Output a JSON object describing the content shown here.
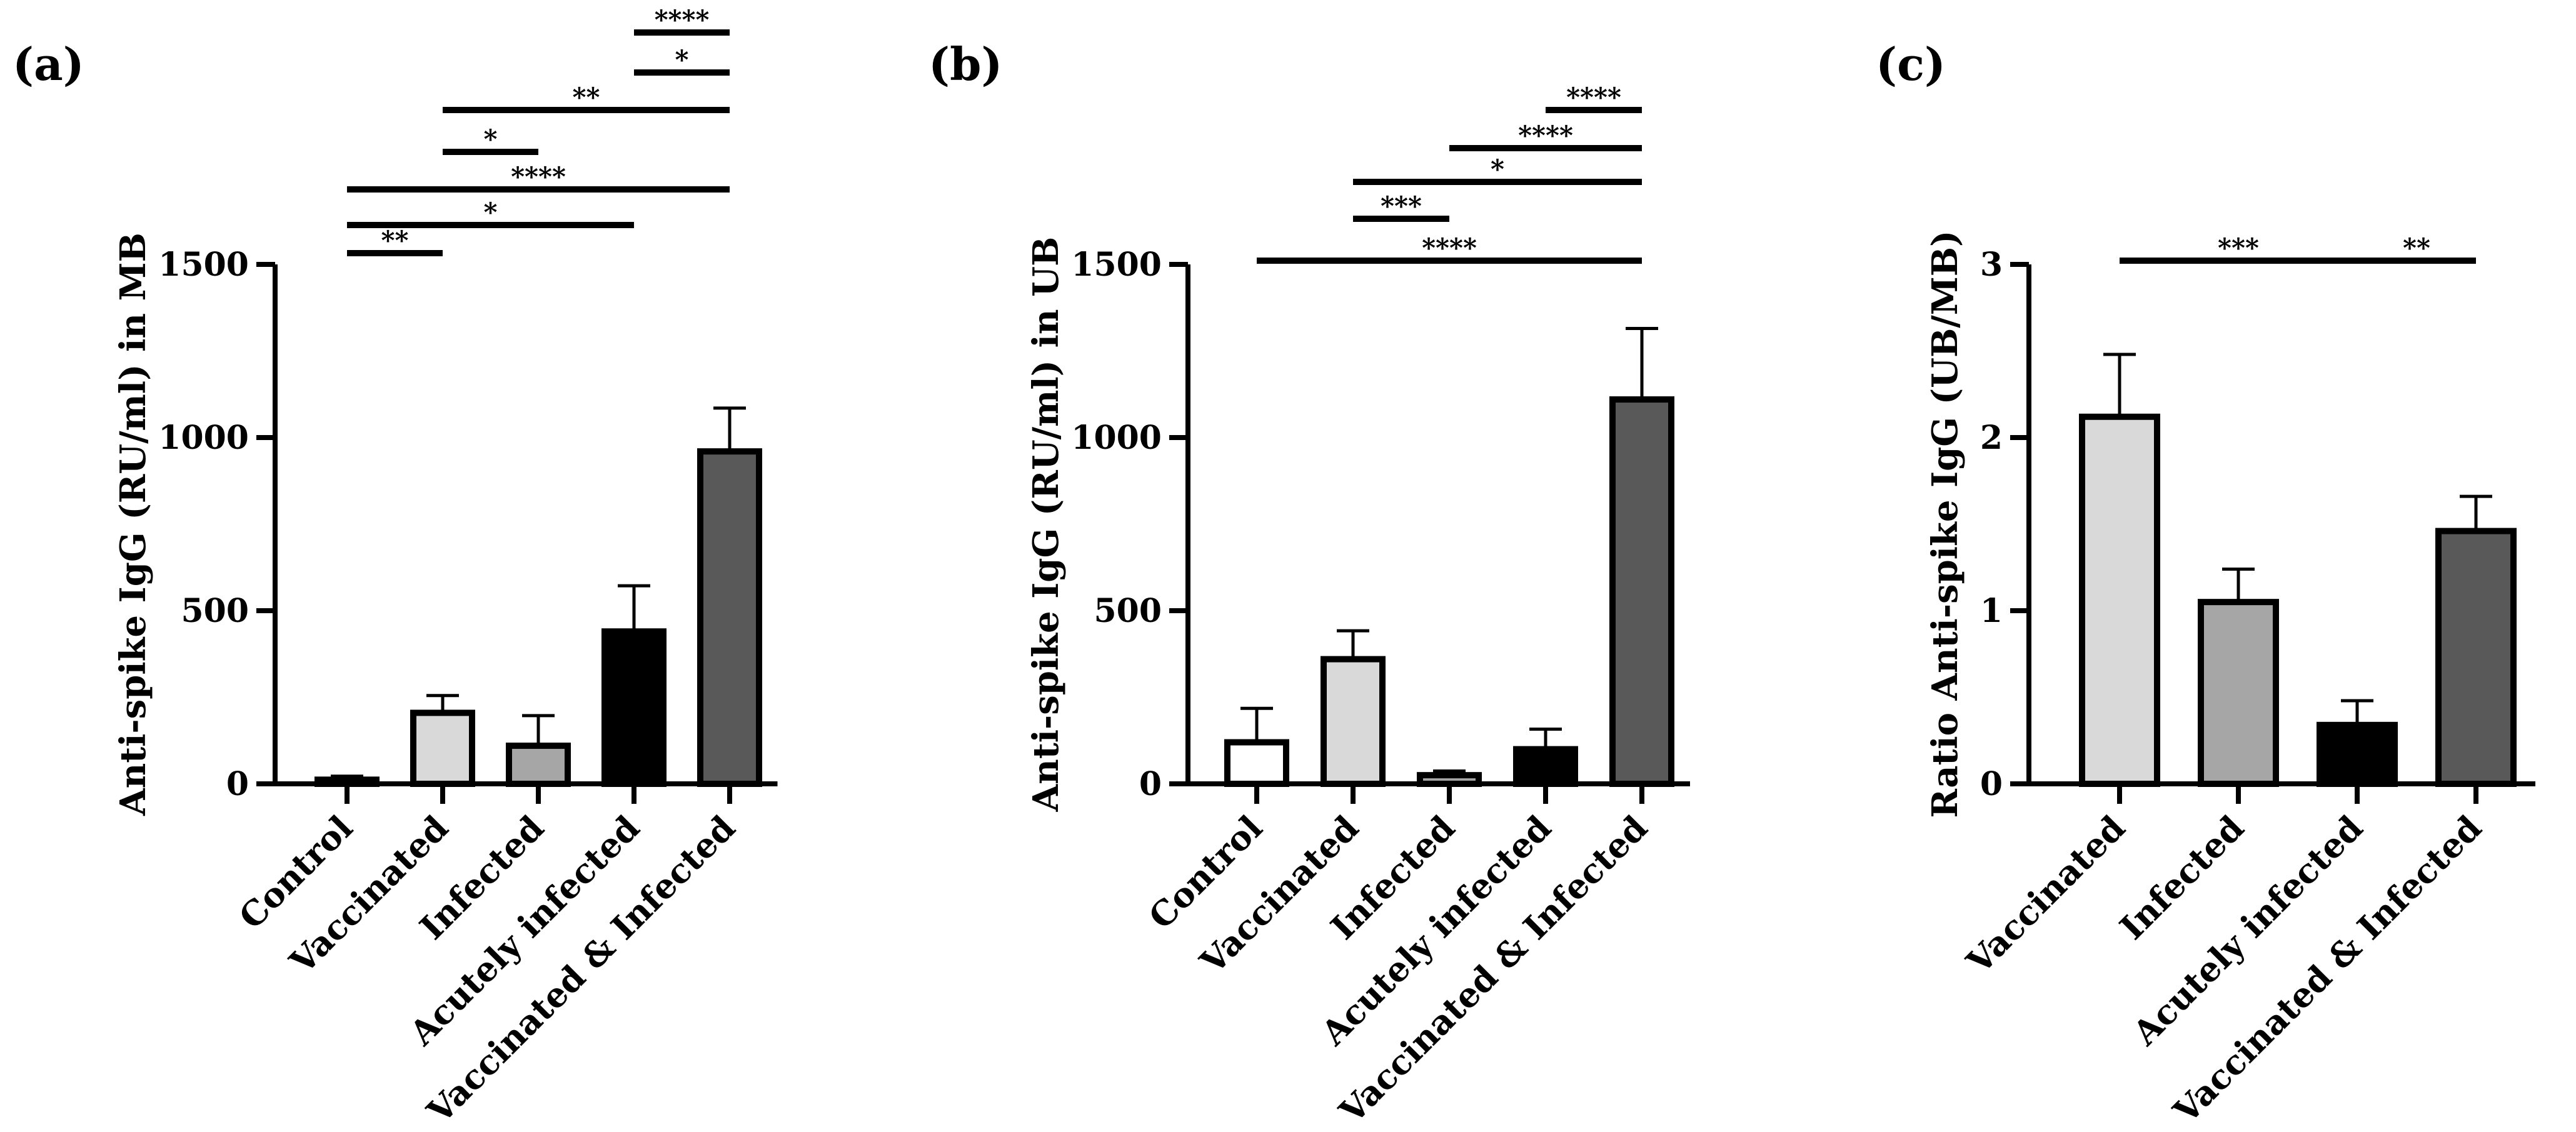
{
  "chart_data": [
    {
      "panel": "(a)",
      "type": "bar",
      "ylabel": "Anti-spike IgG (RU/ml) in MB",
      "ylim": [
        0,
        1500
      ],
      "yticks": [
        0,
        500,
        1000,
        1500
      ],
      "categories": [
        "Control",
        "Vaccinated",
        "Infected",
        "Acutely infected",
        "Vaccinated & Infected"
      ],
      "values": [
        12,
        205,
        110,
        440,
        960
      ],
      "errors": [
        10,
        50,
        87,
        132,
        125
      ],
      "bar_colors": [
        "#ffffff",
        "#d9d9d9",
        "#a6a6a6",
        "#000000",
        "#595959"
      ],
      "significance": [
        {
          "from": 0,
          "to": 1,
          "label": "**"
        },
        {
          "from": 0,
          "to": 3,
          "label": "*"
        },
        {
          "from": 0,
          "to": 4,
          "label": "****"
        },
        {
          "from": 1,
          "to": 2,
          "label": "*"
        },
        {
          "from": 1,
          "to": 4,
          "label": "**"
        },
        {
          "from": 3,
          "to": 4,
          "label": "*"
        },
        {
          "from": 3,
          "to": 4,
          "label": "****"
        }
      ]
    },
    {
      "panel": "(b)",
      "type": "bar",
      "ylabel": "Anti-spike IgG (RU/ml) in UB",
      "ylim": [
        0,
        1500
      ],
      "yticks": [
        0,
        500,
        1000,
        1500
      ],
      "categories": [
        "Control",
        "Vaccinated",
        "Infected",
        "Acutely infected",
        "Vaccinated & Infected"
      ],
      "values": [
        120,
        360,
        25,
        100,
        1110
      ],
      "errors": [
        98,
        82,
        12,
        58,
        205
      ],
      "bar_colors": [
        "#ffffff",
        "#d9d9d9",
        "#a6a6a6",
        "#000000",
        "#595959"
      ],
      "significance": [
        {
          "from": 0,
          "to": 4,
          "label": "****"
        },
        {
          "from": 1,
          "to": 2,
          "label": "***"
        },
        {
          "from": 1,
          "to": 4,
          "label": "*"
        },
        {
          "from": 2,
          "to": 4,
          "label": "****"
        },
        {
          "from": 3,
          "to": 4,
          "label": "****"
        }
      ]
    },
    {
      "panel": "(c)",
      "type": "bar",
      "ylabel": "Ratio Anti-spike IgG (UB/MB)",
      "ylim": [
        0,
        3
      ],
      "yticks": [
        0,
        1,
        2,
        3
      ],
      "categories": [
        "Vaccinated",
        "Infected",
        "Acutely infected",
        "Vaccinated & Infected"
      ],
      "values": [
        2.12,
        1.05,
        0.34,
        1.46
      ],
      "errors": [
        0.36,
        0.19,
        0.14,
        0.2
      ],
      "bar_colors": [
        "#d9d9d9",
        "#a6a6a6",
        "#000000",
        "#595959"
      ],
      "significance": [
        {
          "from": 0,
          "to": 2,
          "label": "***"
        },
        {
          "from": 2,
          "to": 3,
          "label": "**"
        }
      ]
    }
  ]
}
